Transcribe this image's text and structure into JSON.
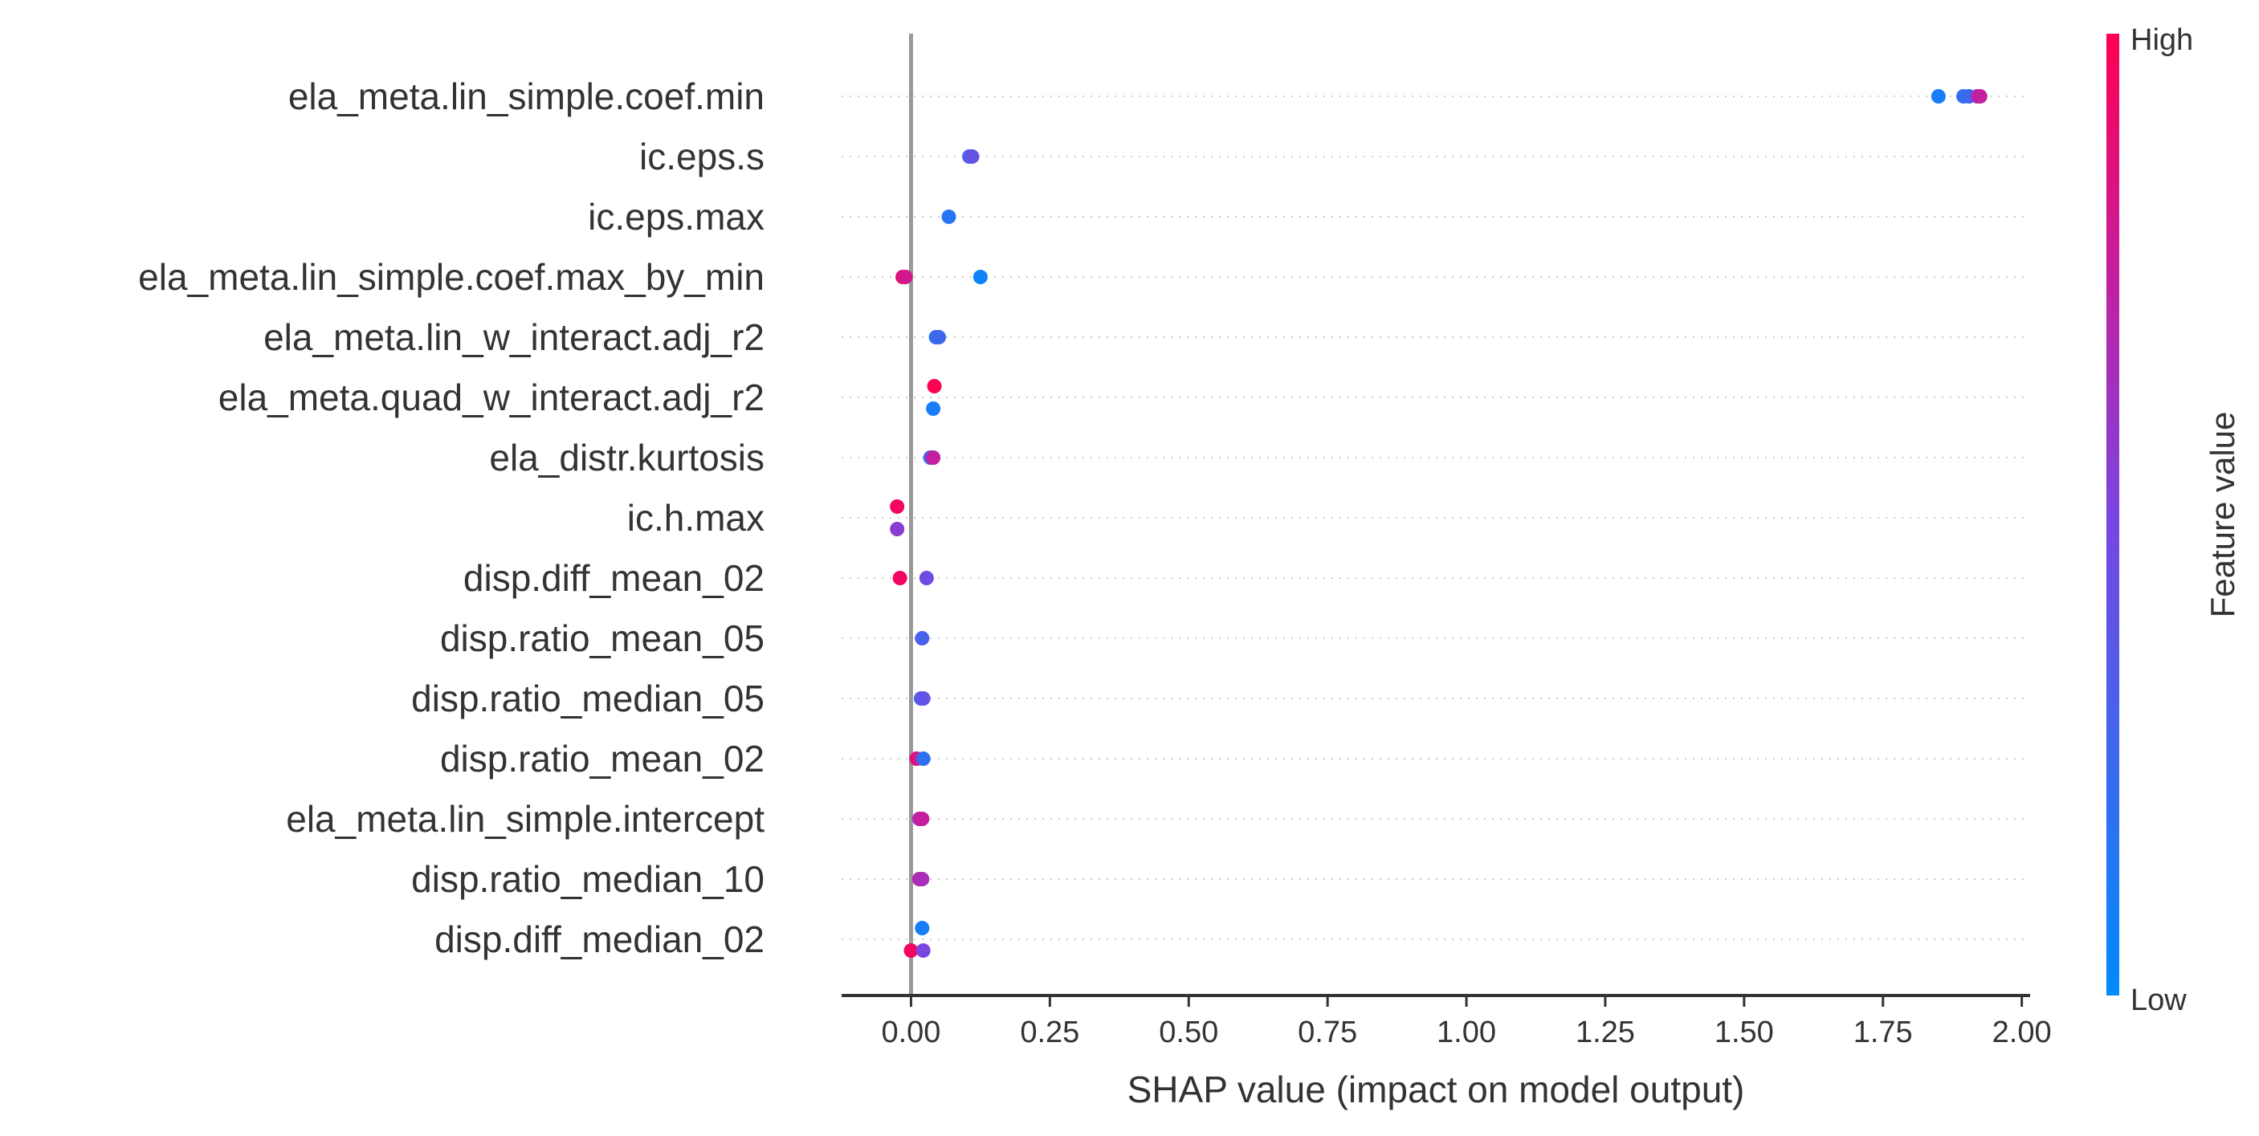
{
  "chart_data": {
    "type": "scatter",
    "subtype": "shap-beeswarm",
    "xlabel": "SHAP value (impact on model output)",
    "xlim": [
      -0.125,
      2.015
    ],
    "x_ticks": [
      0.0,
      0.25,
      0.5,
      0.75,
      1.0,
      1.25,
      1.5,
      1.75,
      2.0
    ],
    "x_tick_labels": [
      "0.00",
      "0.25",
      "0.50",
      "0.75",
      "1.00",
      "1.25",
      "1.50",
      "1.75",
      "2.00"
    ],
    "colorbar": {
      "title": "Feature value",
      "high_label": "High",
      "low_label": "Low",
      "low_color": "#008bfb",
      "high_color": "#ff0052"
    },
    "features": [
      {
        "name": "ela_meta.lin_simple.coef.min",
        "points": [
          {
            "x": 1.85,
            "v": 0.1,
            "dy": 0
          },
          {
            "x": 1.895,
            "v": 0.2,
            "dy": 0
          },
          {
            "x": 1.905,
            "v": 0.25,
            "dy": 0
          },
          {
            "x": 1.92,
            "v": 0.6,
            "dy": 0
          },
          {
            "x": 1.925,
            "v": 0.75,
            "dy": 0
          }
        ]
      },
      {
        "name": "ic.eps.s",
        "points": [
          {
            "x": 0.105,
            "v": 0.3,
            "dy": 0
          },
          {
            "x": 0.11,
            "v": 0.4,
            "dy": 0
          }
        ]
      },
      {
        "name": "ic.eps.max",
        "points": [
          {
            "x": 0.068,
            "v": 0.15,
            "dy": 0
          }
        ]
      },
      {
        "name": "ela_meta.lin_simple.coef.max_by_min",
        "points": [
          {
            "x": -0.015,
            "v": 0.9,
            "dy": 0
          },
          {
            "x": -0.01,
            "v": 0.8,
            "dy": 0
          },
          {
            "x": 0.125,
            "v": 0.05,
            "dy": 0
          }
        ]
      },
      {
        "name": "ela_meta.lin_w_interact.adj_r2",
        "points": [
          {
            "x": 0.045,
            "v": 0.2,
            "dy": 0
          },
          {
            "x": 0.05,
            "v": 0.25,
            "dy": 0
          }
        ]
      },
      {
        "name": "ela_meta.quad_w_interact.adj_r2",
        "points": [
          {
            "x": 0.042,
            "v": 1.0,
            "dy": -1
          },
          {
            "x": 0.04,
            "v": 0.1,
            "dy": 1
          }
        ]
      },
      {
        "name": "ela_distr.kurtosis",
        "points": [
          {
            "x": 0.035,
            "v": 0.3,
            "dy": 0
          },
          {
            "x": 0.04,
            "v": 0.75,
            "dy": 0
          }
        ]
      },
      {
        "name": "ic.h.max",
        "points": [
          {
            "x": -0.025,
            "v": 0.95,
            "dy": -1
          },
          {
            "x": -0.025,
            "v": 0.55,
            "dy": 1
          }
        ]
      },
      {
        "name": "disp.diff_mean_02",
        "points": [
          {
            "x": -0.02,
            "v": 0.95,
            "dy": 0
          },
          {
            "x": 0.028,
            "v": 0.45,
            "dy": 0
          }
        ]
      },
      {
        "name": "disp.ratio_mean_05",
        "points": [
          {
            "x": 0.02,
            "v": 0.3,
            "dy": 0
          }
        ]
      },
      {
        "name": "disp.ratio_median_05",
        "points": [
          {
            "x": 0.018,
            "v": 0.3,
            "dy": 0
          },
          {
            "x": 0.022,
            "v": 0.4,
            "dy": 0
          }
        ]
      },
      {
        "name": "disp.ratio_mean_02",
        "points": [
          {
            "x": 0.01,
            "v": 0.85,
            "dy": 0
          },
          {
            "x": 0.022,
            "v": 0.2,
            "dy": 0
          }
        ]
      },
      {
        "name": "ela_meta.lin_simple.intercept",
        "points": [
          {
            "x": 0.015,
            "v": 0.7,
            "dy": 0
          },
          {
            "x": 0.02,
            "v": 0.75,
            "dy": 0
          }
        ]
      },
      {
        "name": "disp.ratio_median_10",
        "points": [
          {
            "x": 0.015,
            "v": 0.7,
            "dy": 0
          },
          {
            "x": 0.02,
            "v": 0.65,
            "dy": 0
          }
        ]
      },
      {
        "name": "disp.diff_median_02",
        "points": [
          {
            "x": 0.02,
            "v": 0.1,
            "dy": -1
          },
          {
            "x": 0.0,
            "v": 0.95,
            "dy": 1
          },
          {
            "x": 0.022,
            "v": 0.5,
            "dy": 1
          }
        ]
      }
    ]
  }
}
